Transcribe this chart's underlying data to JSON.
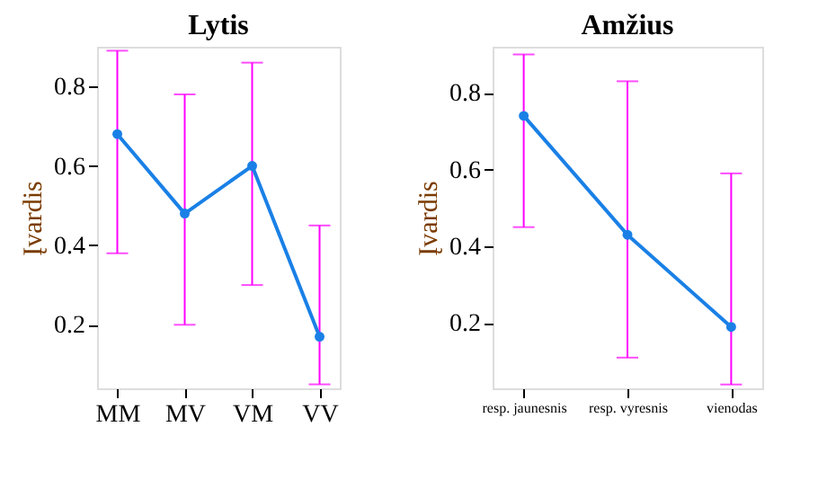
{
  "chart_data": [
    {
      "type": "line",
      "title": "Lytis",
      "ylabel": "Įvardis",
      "categories": [
        "MM",
        "MV",
        "VM",
        "VV"
      ],
      "ylim": [
        0.04,
        0.9
      ],
      "yticks": [
        0.2,
        0.4,
        0.6,
        0.8
      ],
      "grid": false,
      "marker": "circle",
      "line_style": "solid",
      "series": [
        {
          "color": "#1a80e6",
          "values": [
            0.68,
            0.48,
            0.6,
            0.17
          ],
          "errors": [
            [
              0.38,
              0.89
            ],
            [
              0.2,
              0.78
            ],
            [
              0.3,
              0.86
            ],
            [
              0.05,
              0.45
            ]
          ]
        }
      ]
    },
    {
      "type": "line",
      "title": "Amžius",
      "ylabel": "Įvardis",
      "categories": [
        "resp. jaunesnis",
        "resp. vyresnis",
        "vienodas"
      ],
      "ylim": [
        0.03,
        0.92
      ],
      "yticks": [
        0.2,
        0.4,
        0.6,
        0.8
      ],
      "grid": false,
      "marker": "circle",
      "line_style": "solid",
      "series": [
        {
          "color": "#1a80e6",
          "values": [
            0.74,
            0.43,
            0.19
          ],
          "errors": [
            [
              0.45,
              0.9
            ],
            [
              0.11,
              0.83
            ],
            [
              0.04,
              0.59
            ]
          ]
        }
      ]
    }
  ]
}
